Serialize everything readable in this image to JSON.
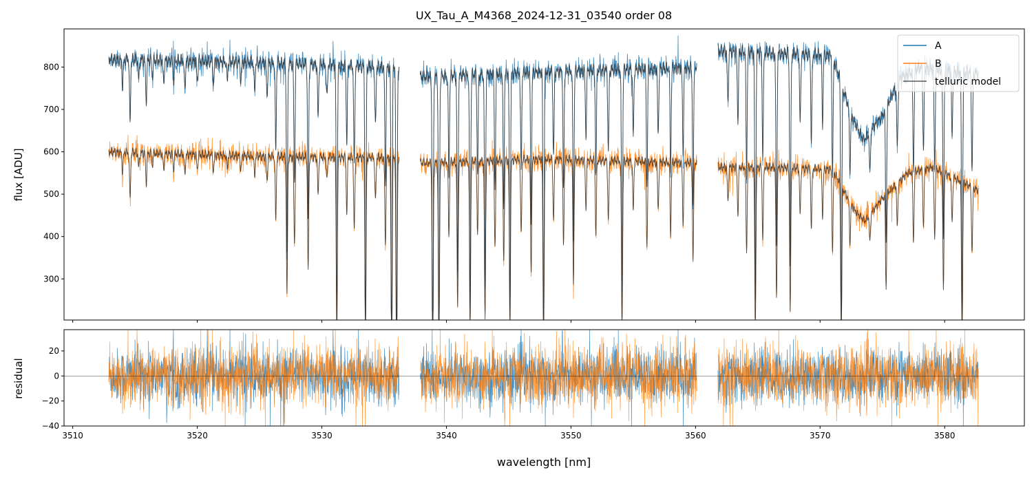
{
  "chart_data": [
    {
      "type": "line",
      "panel": "spectrum",
      "title": "UX_Tau_A_M4368_2024-12-31_03540  order 08",
      "xlabel": "",
      "ylabel": "flux [ADU]",
      "xlim": [
        3509.3,
        3586.4
      ],
      "ylim": [
        203,
        890
      ],
      "xticks": [
        3510,
        3520,
        3530,
        3540,
        3550,
        3560,
        3570,
        3580
      ],
      "yticks": [
        300,
        400,
        500,
        600,
        700,
        800
      ],
      "grid": false,
      "legend": {
        "placement": "top-right",
        "entries": [
          "A",
          "B",
          "telluric model"
        ]
      },
      "segments_nm": [
        [
          3512.9,
          3536.2
        ],
        [
          3537.9,
          3560.1
        ],
        [
          3561.8,
          3582.7
        ]
      ],
      "series": [
        {
          "name": "A",
          "color": "#1f77b4",
          "continuum": [
            [
              3512.9,
              835
            ],
            [
              3520,
              830
            ],
            [
              3527,
              825
            ],
            [
              3536.2,
              815
            ],
            [
              3537.9,
              792
            ],
            [
              3548,
              805
            ],
            [
              3560.1,
              815
            ],
            [
              3561.8,
              855
            ],
            [
              3566,
              850
            ],
            [
              3571,
              845
            ],
            [
              3572.5,
              700
            ],
            [
              3573.5,
              640
            ],
            [
              3575,
              700
            ],
            [
              3576.5,
              790
            ],
            [
              3578,
              815
            ],
            [
              3582.7,
              800
            ]
          ]
        },
        {
          "name": "B",
          "color": "#ff7f0e",
          "continuum": [
            [
              3512.9,
              612
            ],
            [
              3520,
              605
            ],
            [
              3527,
              600
            ],
            [
              3536.2,
              598
            ],
            [
              3537.9,
              585
            ],
            [
              3548,
              595
            ],
            [
              3560.1,
              585
            ],
            [
              3561.8,
              575
            ],
            [
              3566,
              575
            ],
            [
              3571,
              570
            ],
            [
              3572.8,
              470
            ],
            [
              3573.6,
              445
            ],
            [
              3575,
              500
            ],
            [
              3577,
              560
            ],
            [
              3579,
              575
            ],
            [
              3582.7,
              520
            ]
          ]
        },
        {
          "name": "telluric model",
          "color": "#333333"
        }
      ],
      "absorption_lines": [
        [
          3514.0,
          0.08
        ],
        [
          3514.6,
          0.18
        ],
        [
          3515.3,
          0.06
        ],
        [
          3515.9,
          0.12
        ],
        [
          3516.4,
          0.05
        ],
        [
          3517.3,
          0.07
        ],
        [
          3518.1,
          0.06
        ],
        [
          3519.0,
          0.08
        ],
        [
          3520.0,
          0.06
        ],
        [
          3521.3,
          0.07
        ],
        [
          3522.4,
          0.05
        ],
        [
          3523.5,
          0.06
        ],
        [
          3524.6,
          0.08
        ],
        [
          3525.6,
          0.1
        ],
        [
          3526.3,
          0.25
        ],
        [
          3527.2,
          0.55
        ],
        [
          3527.8,
          0.35
        ],
        [
          3528.9,
          0.45
        ],
        [
          3529.7,
          0.15
        ],
        [
          3530.4,
          0.1
        ],
        [
          3531.2,
          0.75
        ],
        [
          3532.0,
          0.22
        ],
        [
          3532.6,
          0.3
        ],
        [
          3533.5,
          0.8
        ],
        [
          3534.3,
          0.18
        ],
        [
          3535.1,
          0.35
        ],
        [
          3535.6,
          0.9
        ],
        [
          3536.0,
          0.95
        ],
        [
          3538.9,
          0.9
        ],
        [
          3539.4,
          0.85
        ],
        [
          3540.2,
          0.3
        ],
        [
          3540.9,
          0.6
        ],
        [
          3541.9,
          0.7
        ],
        [
          3542.5,
          0.3
        ],
        [
          3543.1,
          0.65
        ],
        [
          3543.9,
          0.35
        ],
        [
          3544.6,
          0.4
        ],
        [
          3545.1,
          0.7
        ],
        [
          3546.0,
          0.3
        ],
        [
          3546.8,
          0.45
        ],
        [
          3547.8,
          0.8
        ],
        [
          3548.6,
          0.25
        ],
        [
          3549.4,
          0.35
        ],
        [
          3550.2,
          0.5
        ],
        [
          3551.2,
          0.2
        ],
        [
          3552.0,
          0.3
        ],
        [
          3553.0,
          0.25
        ],
        [
          3554.1,
          0.7
        ],
        [
          3555.0,
          0.2
        ],
        [
          3556.1,
          0.35
        ],
        [
          3557.0,
          0.2
        ],
        [
          3558.0,
          0.3
        ],
        [
          3559.0,
          0.25
        ],
        [
          3559.8,
          0.4
        ],
        [
          3562.6,
          0.15
        ],
        [
          3563.4,
          0.2
        ],
        [
          3564.1,
          0.35
        ],
        [
          3564.8,
          0.7
        ],
        [
          3565.4,
          0.3
        ],
        [
          3566.5,
          0.55
        ],
        [
          3567.6,
          0.6
        ],
        [
          3568.4,
          0.2
        ],
        [
          3569.3,
          0.25
        ],
        [
          3570.2,
          0.2
        ],
        [
          3571.0,
          0.35
        ],
        [
          3571.7,
          0.75
        ],
        [
          3572.4,
          0.2
        ],
        [
          3574.0,
          0.15
        ],
        [
          3575.3,
          0.45
        ],
        [
          3576.2,
          0.2
        ],
        [
          3577.5,
          0.3
        ],
        [
          3578.3,
          0.25
        ],
        [
          3579.2,
          0.3
        ],
        [
          3579.9,
          0.5
        ],
        [
          3580.6,
          0.2
        ],
        [
          3581.4,
          0.75
        ],
        [
          3582.2,
          0.3
        ]
      ]
    },
    {
      "type": "line",
      "panel": "residual",
      "xlabel": "wavelength [nm]",
      "ylabel": "residual",
      "xlim": [
        3509.3,
        3586.4
      ],
      "ylim": [
        -40,
        37
      ],
      "xticks": [
        3510,
        3520,
        3530,
        3540,
        3550,
        3560,
        3570,
        3580
      ],
      "yticks": [
        -40,
        -20,
        0,
        20
      ],
      "zero_line": 0,
      "series": [
        {
          "name": "A",
          "color": "#1f77b4"
        },
        {
          "name": "B",
          "color": "#ff7f0e"
        }
      ]
    }
  ]
}
